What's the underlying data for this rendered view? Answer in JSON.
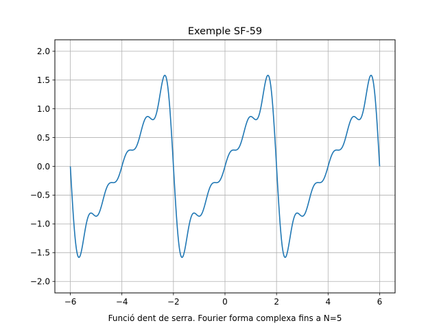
{
  "chart_data": {
    "type": "line",
    "title": "Exemple SF-59",
    "xlabel": "Funció dent de serra. Fourier forma complexa fins a N=5",
    "ylabel": "",
    "xlim": [
      -6.6,
      6.6
    ],
    "ylim": [
      -2.2,
      2.2
    ],
    "x_ticks": [
      -6,
      -4,
      -2,
      0,
      2,
      4,
      6
    ],
    "y_ticks": [
      -2.0,
      -1.5,
      -1.0,
      -0.5,
      0.0,
      0.5,
      1.0,
      1.5,
      2.0
    ],
    "x_tick_labels": [
      "−6",
      "−4",
      "−2",
      "0",
      "2",
      "4",
      "6"
    ],
    "y_tick_labels": [
      "−2.0",
      "−1.5",
      "−1.0",
      "−0.5",
      "0.0",
      "0.5",
      "1.0",
      "1.5",
      "2.0"
    ],
    "grid": true,
    "series": [
      {
        "color": "#1f77b4",
        "function": "partial Fourier sum of a sawtooth of period 4, terms n = 1..5",
        "x_range": [
          -6,
          6
        ]
      }
    ]
  }
}
